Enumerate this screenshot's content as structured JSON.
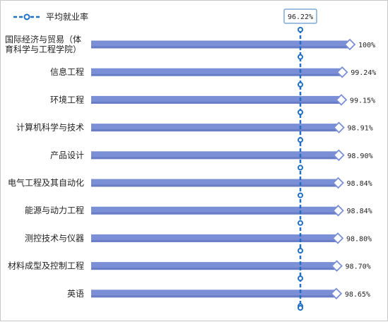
{
  "chart_data": {
    "type": "bar",
    "orientation": "horizontal",
    "categories": [
      [
        "国际经济与贸易（体",
        "育科学与工程学院）"
      ],
      [
        "信息工程"
      ],
      [
        "环境工程"
      ],
      [
        "计算机科学与技术"
      ],
      [
        "产品设计"
      ],
      [
        "电气工程及其自动化"
      ],
      [
        "能源与动力工程"
      ],
      [
        "测控技术与仪器"
      ],
      [
        "材料成型及控制工程"
      ],
      [
        "英语"
      ]
    ],
    "values": [
      100,
      99.24,
      99.15,
      98.91,
      98.9,
      98.84,
      98.84,
      98.8,
      98.7,
      98.65
    ],
    "value_labels": [
      "100%",
      "99.24%",
      "99.15%",
      "98.91%",
      "98.90%",
      "98.84%",
      "98.84%",
      "98.80%",
      "98.70%",
      "98.65%"
    ],
    "average": {
      "name": "平均就业率",
      "value": 96.22,
      "label": "96.22%"
    },
    "legend_position": "top-left",
    "grid": false,
    "colors": {
      "bar": "#7b8fd6",
      "bar_dark": "#5e72bd",
      "marker_fill": "#ffffff",
      "marker_stroke": "#7b8fd6",
      "avg_line": "#1f6fc5"
    }
  }
}
